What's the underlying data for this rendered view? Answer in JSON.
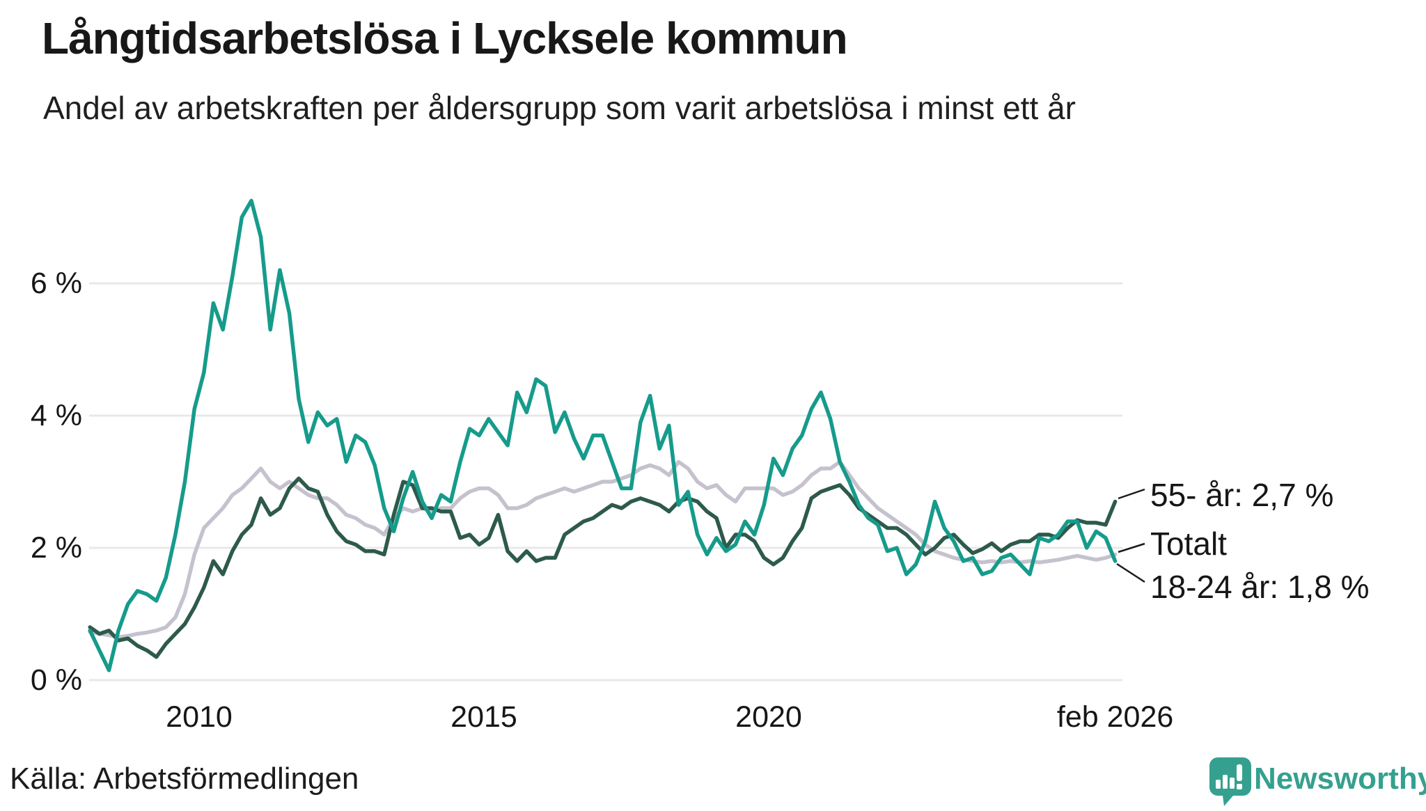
{
  "header": {
    "title": "Långtidsarbetslösa i Lycksele kommun",
    "subtitle": "Andel av arbetskraften per åldersgrupp som varit arbetslösa i minst ett år"
  },
  "source": "Källa: Arbetsförmedlingen",
  "branding": {
    "name": "Newsworthy",
    "color": "#35a08f"
  },
  "colors": {
    "grid": "#e8e7eb",
    "teal": "#169b8b",
    "dark_green": "#2d5a4b",
    "gray": "#c5c2ce",
    "text": "#1a1a1a"
  },
  "chart_data": {
    "type": "line",
    "title": "Långtidsarbetslösa i Lycksele kommun",
    "subtitle": "Andel av arbetskraften per åldersgrupp som varit arbetslösa i minst ett år",
    "unit": "% av arbetskraften",
    "grid": true,
    "x_start": 2008.0833,
    "x_step": 0.1667,
    "xlim": [
      2008.0833,
      2026.0833
    ],
    "ylim": [
      0,
      7.6
    ],
    "x_ticks": [
      {
        "label": "2010",
        "year": 2010
      },
      {
        "label": "2015",
        "year": 2015
      },
      {
        "label": "2020",
        "year": 2020
      },
      {
        "label": "feb 2026",
        "year": 2026.0833
      }
    ],
    "y_ticks": [
      {
        "label": "6 %",
        "value": 6
      },
      {
        "label": "4 %",
        "value": 4
      },
      {
        "label": "2 %",
        "value": 2
      },
      {
        "label": "0 %",
        "value": 0
      }
    ],
    "series": [
      {
        "name": "Totalt",
        "end_label": "Totalt",
        "end_value": 1.9,
        "color": "#c5c2ce",
        "values": [
          0.73,
          0.7,
          0.68,
          0.65,
          0.67,
          0.7,
          0.72,
          0.75,
          0.8,
          0.95,
          1.3,
          1.9,
          2.3,
          2.45,
          2.6,
          2.8,
          2.9,
          3.05,
          3.2,
          3.0,
          2.9,
          3.0,
          2.9,
          2.8,
          2.75,
          2.75,
          2.65,
          2.5,
          2.45,
          2.35,
          2.3,
          2.2,
          2.45,
          2.6,
          2.55,
          2.6,
          2.55,
          2.6,
          2.6,
          2.75,
          2.85,
          2.9,
          2.9,
          2.8,
          2.6,
          2.6,
          2.65,
          2.75,
          2.8,
          2.85,
          2.9,
          2.85,
          2.9,
          2.95,
          3.0,
          3.0,
          3.05,
          3.1,
          3.2,
          3.25,
          3.2,
          3.1,
          3.3,
          3.2,
          3.0,
          2.9,
          2.95,
          2.8,
          2.7,
          2.9,
          2.9,
          2.9,
          2.9,
          2.8,
          2.85,
          2.95,
          3.1,
          3.2,
          3.2,
          3.3,
          3.1,
          2.9,
          2.75,
          2.6,
          2.5,
          2.4,
          2.3,
          2.2,
          2.05,
          1.95,
          1.9,
          1.85,
          1.82,
          1.8,
          1.78,
          1.8,
          1.78,
          1.8,
          1.78,
          1.8,
          1.78,
          1.8,
          1.82,
          1.85,
          1.88,
          1.85,
          1.82,
          1.85,
          1.9
        ]
      },
      {
        "name": "55- år",
        "end_label": "55- år: 2,7 %",
        "end_value": 2.7,
        "color": "#2d5a4b",
        "values": [
          0.8,
          0.7,
          0.75,
          0.6,
          0.63,
          0.52,
          0.45,
          0.35,
          0.55,
          0.7,
          0.85,
          1.1,
          1.4,
          1.8,
          1.6,
          1.95,
          2.2,
          2.35,
          2.75,
          2.5,
          2.6,
          2.9,
          3.05,
          2.9,
          2.85,
          2.5,
          2.25,
          2.1,
          2.05,
          1.95,
          1.95,
          1.9,
          2.5,
          3.0,
          2.95,
          2.6,
          2.6,
          2.55,
          2.55,
          2.15,
          2.2,
          2.05,
          2.15,
          2.5,
          1.95,
          1.8,
          1.95,
          1.8,
          1.85,
          1.85,
          2.2,
          2.3,
          2.4,
          2.45,
          2.55,
          2.65,
          2.6,
          2.7,
          2.75,
          2.7,
          2.65,
          2.55,
          2.7,
          2.75,
          2.7,
          2.55,
          2.45,
          2.0,
          2.2,
          2.2,
          2.1,
          1.85,
          1.75,
          1.85,
          2.1,
          2.3,
          2.75,
          2.85,
          2.9,
          2.95,
          2.8,
          2.6,
          2.5,
          2.4,
          2.3,
          2.3,
          2.2,
          2.05,
          1.9,
          2.0,
          2.15,
          2.2,
          2.05,
          1.92,
          1.98,
          2.07,
          1.95,
          2.05,
          2.1,
          2.1,
          2.2,
          2.2,
          2.15,
          2.3,
          2.42,
          2.38,
          2.38,
          2.35,
          2.7
        ]
      },
      {
        "name": "18-24 år",
        "end_label": "18-24 år: 1,8 %",
        "end_value": 1.8,
        "color": "#169b8b",
        "values": [
          0.75,
          0.45,
          0.15,
          0.75,
          1.15,
          1.35,
          1.3,
          1.2,
          1.55,
          2.2,
          3.0,
          4.1,
          4.65,
          5.7,
          5.3,
          6.1,
          7.0,
          7.25,
          6.7,
          5.3,
          6.2,
          5.55,
          4.25,
          3.6,
          4.05,
          3.85,
          3.95,
          3.3,
          3.7,
          3.6,
          3.25,
          2.6,
          2.25,
          2.75,
          3.15,
          2.7,
          2.45,
          2.8,
          2.7,
          3.3,
          3.8,
          3.7,
          3.95,
          3.75,
          3.55,
          4.35,
          4.05,
          4.55,
          4.45,
          3.75,
          4.05,
          3.65,
          3.35,
          3.7,
          3.7,
          3.3,
          2.9,
          2.9,
          3.9,
          4.3,
          3.5,
          3.85,
          2.65,
          2.85,
          2.2,
          1.9,
          2.15,
          1.95,
          2.05,
          2.4,
          2.2,
          2.65,
          3.35,
          3.1,
          3.5,
          3.7,
          4.1,
          4.35,
          3.95,
          3.3,
          3.0,
          2.65,
          2.45,
          2.35,
          1.95,
          2.0,
          1.6,
          1.75,
          2.1,
          2.7,
          2.3,
          2.1,
          1.8,
          1.85,
          1.6,
          1.65,
          1.85,
          1.9,
          1.75,
          1.6,
          2.15,
          2.1,
          2.2,
          2.4,
          2.4,
          2.0,
          2.25,
          2.15,
          1.8
        ]
      }
    ],
    "annotations": [
      "55- år: 2,7 %",
      "Totalt",
      "18-24 år: 1,8 %"
    ],
    "legend_position": "right-of-line-ends"
  }
}
